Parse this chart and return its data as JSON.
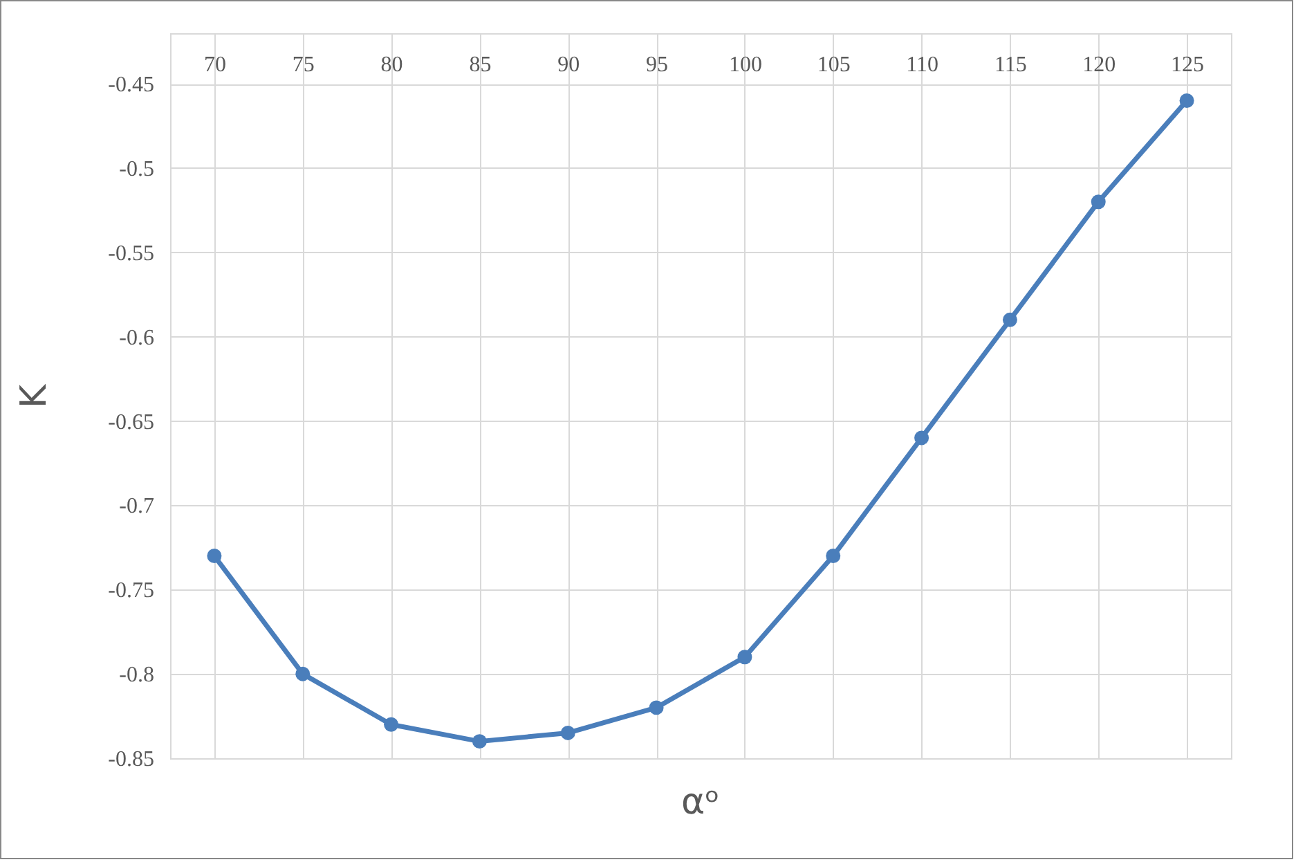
{
  "chart_data": {
    "type": "line",
    "xlabel": "αᵒ",
    "ylabel": "K",
    "categories": [
      "70",
      "75",
      "80",
      "85",
      "90",
      "95",
      "100",
      "105",
      "110",
      "115",
      "120",
      "125"
    ],
    "series": [
      {
        "color": "#4a7ebb",
        "values": [
          -0.73,
          -0.8,
          -0.83,
          -0.84,
          -0.835,
          -0.82,
          -0.79,
          -0.73,
          -0.66,
          -0.59,
          -0.52,
          -0.46
        ]
      }
    ],
    "ylim": [
      -0.85,
      -0.42
    ],
    "yticks": [
      -0.85,
      -0.8,
      -0.75,
      -0.7,
      -0.65,
      -0.6,
      -0.55,
      -0.5,
      -0.45
    ],
    "grid": true,
    "marker": "circle",
    "line_style": "solid"
  }
}
